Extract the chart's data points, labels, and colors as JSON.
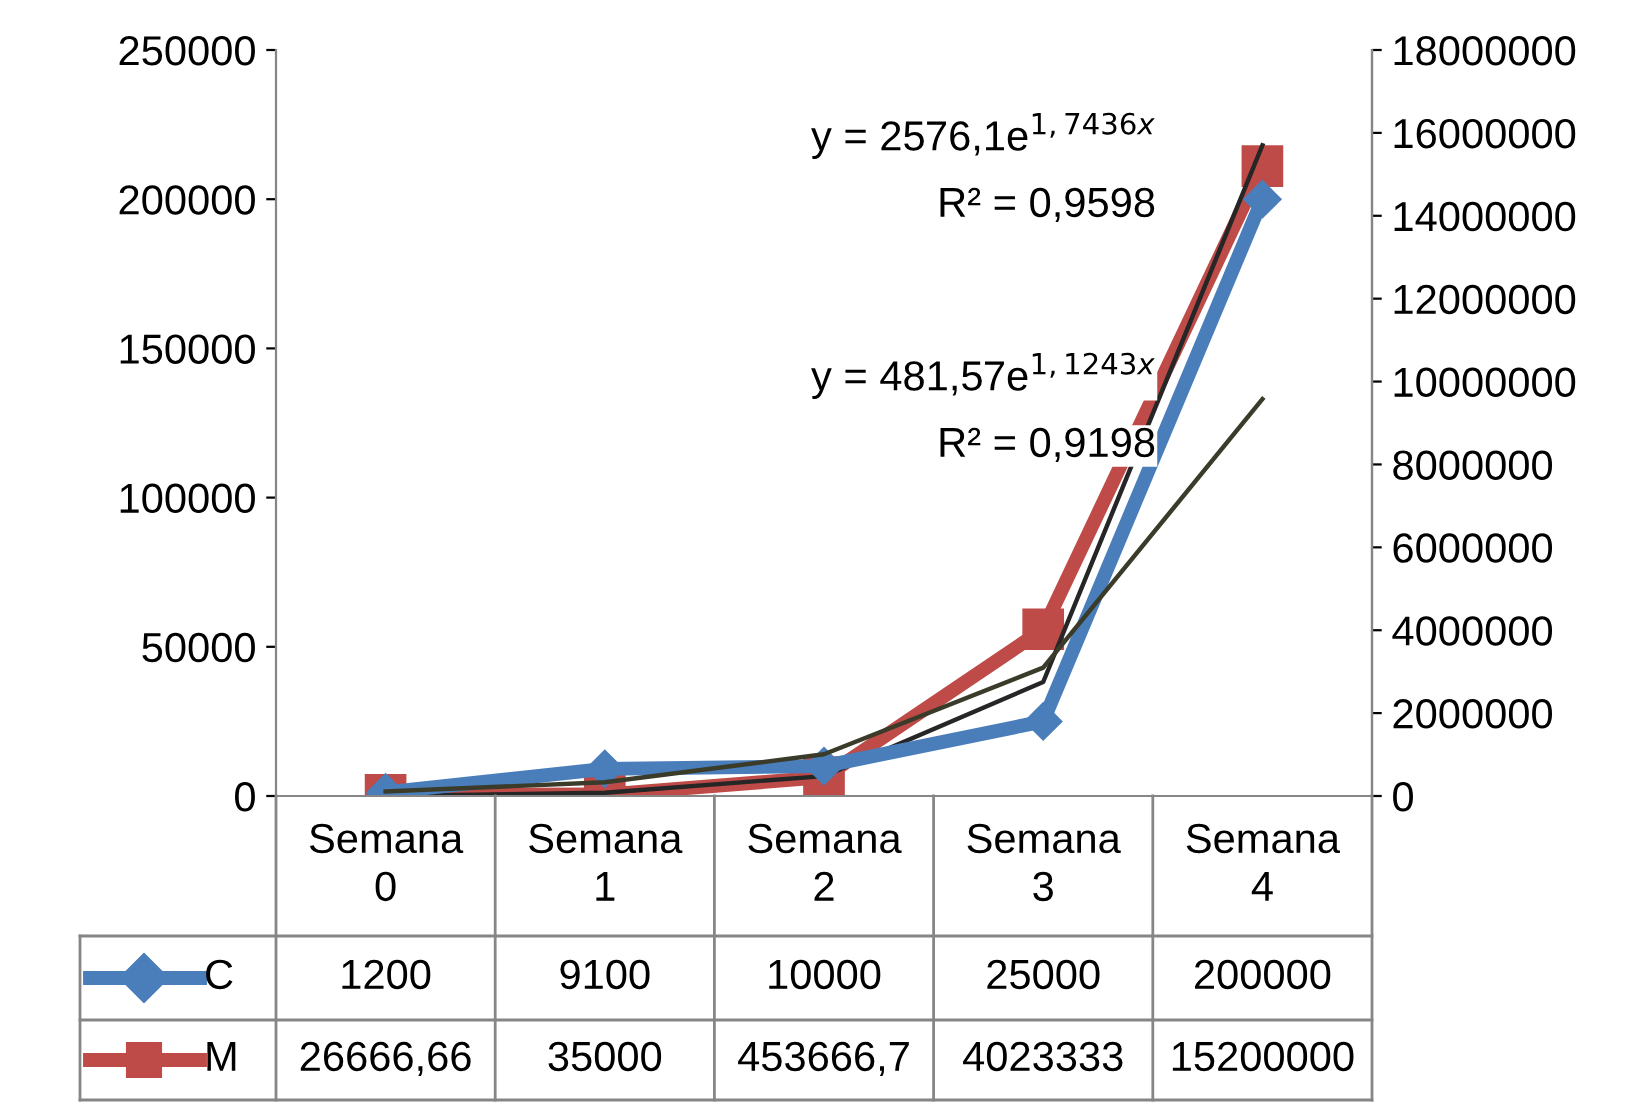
{
  "chart_data": {
    "type": "line",
    "categories": [
      "Semana 0",
      "Semana 1",
      "Semana 2",
      "Semana 3",
      "Semana 4"
    ],
    "series": [
      {
        "name": "C",
        "color": "#4a7ebb",
        "marker": "diamond",
        "values": [
          1200,
          9100,
          10000,
          25000,
          200000
        ],
        "value_labels": [
          "1200",
          "9100",
          "10000",
          "25000",
          "200000"
        ]
      },
      {
        "name": "M",
        "color": "#be4b48",
        "marker": "square",
        "axis": "y2",
        "values": [
          26666.66,
          35000,
          453666.7,
          4023333,
          15200000
        ],
        "value_labels": [
          "26666,66",
          "35000",
          "453666,7",
          "4023333",
          "15200000"
        ]
      },
      {
        "marker": "none",
        "color": "#3b3b2a",
        "values": [
          1500,
          4600,
          14000,
          43000,
          133000
        ]
      },
      {
        "marker": "none",
        "color": "#262626",
        "axis": "y2",
        "values": [
          0,
          80000,
          480000,
          2750000,
          15700000
        ]
      }
    ],
    "ylim": [
      0,
      250000
    ],
    "yticks": [
      0,
      50000,
      100000,
      150000,
      200000,
      250000
    ],
    "y2lim": [
      0,
      18000000
    ],
    "y2ticks": [
      0,
      2000000,
      4000000,
      6000000,
      8000000,
      10000000,
      12000000,
      14000000,
      16000000,
      18000000
    ],
    "annotations": [
      "y = 2576,1e$^{1,7436x}$",
      "R² = 0,9598",
      "y = 481,57e$^{1,1243x}$",
      "R² = 0,9198"
    ],
    "grid": false,
    "legend": "bottom"
  }
}
